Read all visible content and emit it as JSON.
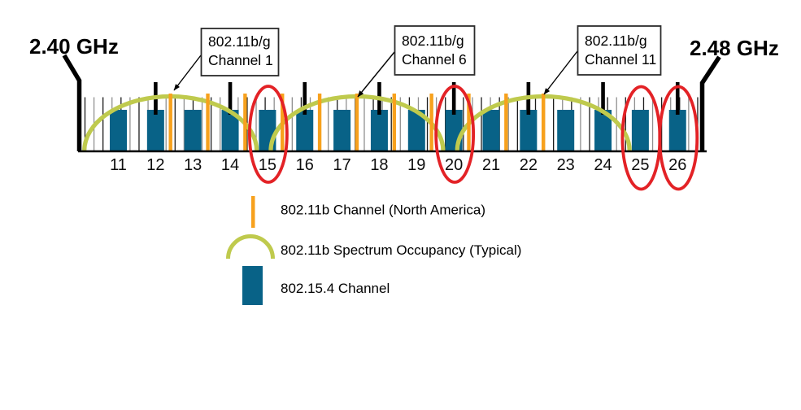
{
  "figure": {
    "axis": {
      "left_label": "2.40 GHz",
      "right_label": "2.48 GHz"
    },
    "callouts": [
      {
        "line1": "802.11b/g",
        "line2": "Channel 1"
      },
      {
        "line1": "802.11b/g",
        "line2": "Channel 6"
      },
      {
        "line1": "802.11b/g",
        "line2": "Channel 11"
      }
    ],
    "zigbee_channels": [
      11,
      12,
      13,
      14,
      15,
      16,
      17,
      18,
      19,
      20,
      21,
      22,
      23,
      24,
      25,
      26
    ],
    "circled_channels": [
      15,
      20,
      25,
      26
    ],
    "wifi_channels": [
      1,
      2,
      3,
      4,
      5,
      6,
      7,
      8,
      9,
      10,
      11
    ],
    "wifi_occupancy_centers": [
      1,
      6,
      11
    ],
    "legend": {
      "items": [
        {
          "symbol": "orange-line",
          "label": "802.11b Channel (North America)"
        },
        {
          "symbol": "green-arc",
          "label": "802.11b Spectrum Occupancy (Typical)"
        },
        {
          "symbol": "blue-bar",
          "label": "802.15.4 Channel"
        }
      ]
    },
    "colors": {
      "zigbee_bar": "#086287",
      "wifi_line": "#F7A11D",
      "occupancy_arc": "#BFCA4D",
      "highlight_ellipse": "#E32226",
      "tick_dark": "#1C1C1C",
      "tick_light": "#909090",
      "axis": "#000000"
    }
  }
}
